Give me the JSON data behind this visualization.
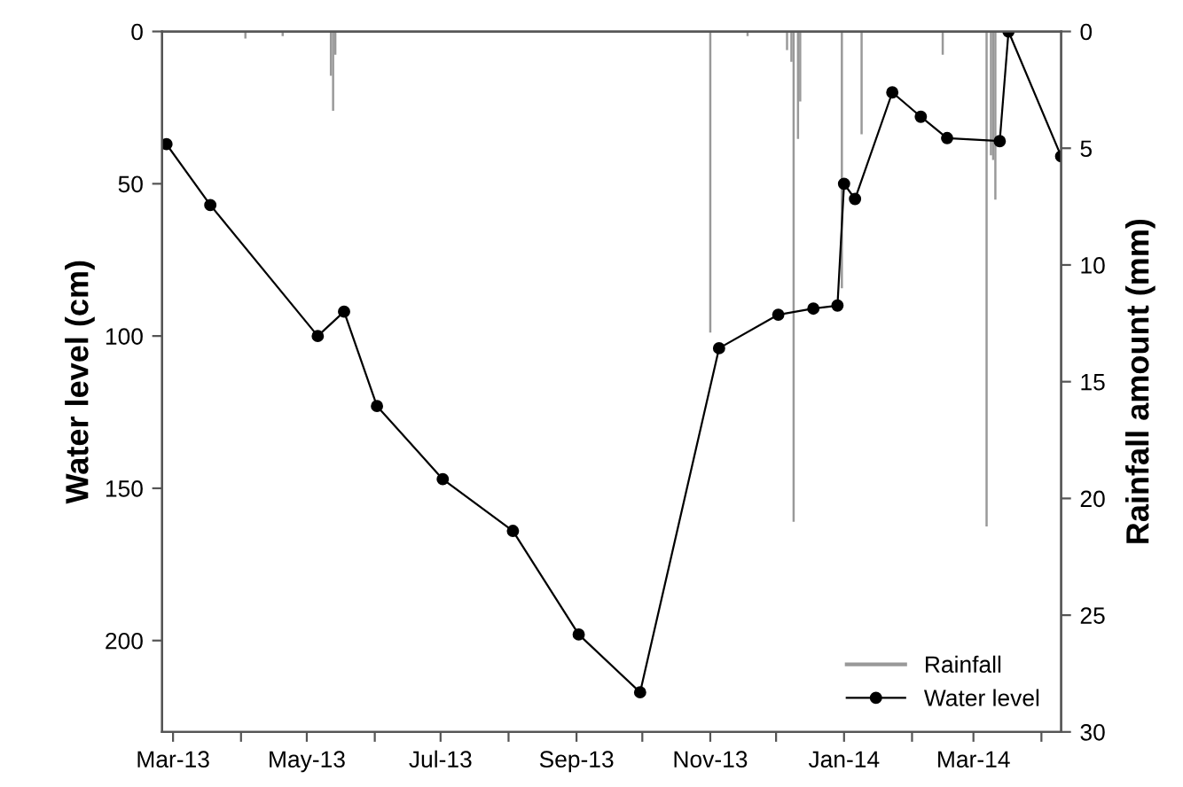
{
  "chart_data": {
    "type": "line",
    "ylabel": "Water level (cm)",
    "y2label": "Rainfall amount (mm)",
    "xlim": [
      "2013-02-24",
      "2014-04-10"
    ],
    "xticks": [
      {
        "value": "2013-03-01",
        "label": "Mar-13"
      },
      {
        "value": "2013-04-01",
        "label": null
      },
      {
        "value": "2013-05-01",
        "label": "May-13"
      },
      {
        "value": "2013-06-01",
        "label": null
      },
      {
        "value": "2013-07-01",
        "label": "Jul-13"
      },
      {
        "value": "2013-08-01",
        "label": null
      },
      {
        "value": "2013-09-01",
        "label": "Sep-13"
      },
      {
        "value": "2013-10-01",
        "label": null
      },
      {
        "value": "2013-11-01",
        "label": "Nov-13"
      },
      {
        "value": "2013-12-01",
        "label": null
      },
      {
        "value": "2014-01-01",
        "label": "Jan-14"
      },
      {
        "value": "2014-02-01",
        "label": null
      },
      {
        "value": "2014-03-01",
        "label": "Mar-14"
      },
      {
        "value": "2014-04-01",
        "label": null
      }
    ],
    "ylim": [
      230,
      0
    ],
    "yticks": [
      0,
      50,
      100,
      150,
      200
    ],
    "y2lim": [
      30,
      0
    ],
    "y2ticks": [
      0,
      5,
      10,
      15,
      20,
      25,
      30
    ],
    "legend": "bottom right",
    "grid": false,
    "series": [
      {
        "name": "Rainfall",
        "type": "bar",
        "axis": "y2",
        "color": "#999999",
        "x": [
          "2013-04-03",
          "2013-04-20",
          "2013-05-12",
          "2013-05-13",
          "2013-05-14",
          "2013-11-01",
          "2013-11-18",
          "2013-12-06",
          "2013-12-08",
          "2013-12-09",
          "2013-12-11",
          "2013-12-12",
          "2013-12-31",
          "2014-01-09",
          "2014-02-15",
          "2014-03-07",
          "2014-03-09",
          "2014-03-10",
          "2014-03-11"
        ],
        "values": [
          0.3,
          0.2,
          1.9,
          3.4,
          1.0,
          12.9,
          0.2,
          0.8,
          1.3,
          21.0,
          4.6,
          3.0,
          11.0,
          4.4,
          1.0,
          21.2,
          5.3,
          5.5,
          7.2
        ]
      },
      {
        "name": "Water level",
        "color": "#000000",
        "marker": "circle",
        "line_style": "solid",
        "x": [
          "2013-02-26",
          "2013-03-18",
          "2013-05-06",
          "2013-05-18",
          "2013-06-02",
          "2013-07-02",
          "2013-08-03",
          "2013-09-02",
          "2013-09-30",
          "2013-11-05",
          "2013-12-02",
          "2013-12-18",
          "2013-12-29",
          "2014-01-01",
          "2014-01-06",
          "2014-01-23",
          "2014-02-05",
          "2014-02-17",
          "2014-03-13",
          "2014-03-17",
          "2014-04-10"
        ],
        "values": [
          37,
          57,
          100,
          92,
          123,
          147,
          164,
          198,
          217,
          104,
          93,
          91,
          90,
          50,
          55,
          20,
          28,
          35,
          36,
          0,
          41
        ]
      }
    ]
  }
}
